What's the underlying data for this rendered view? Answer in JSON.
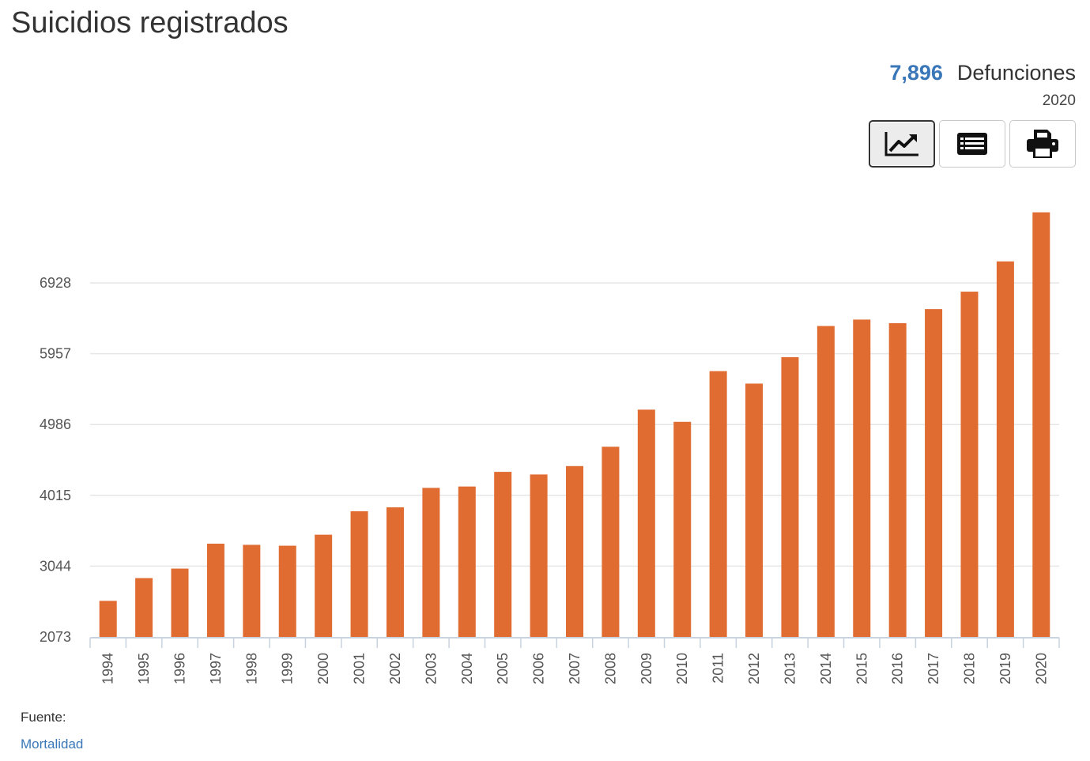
{
  "header": {
    "title": "Suicidios registrados"
  },
  "summary": {
    "value": "7,896",
    "unit": "Defunciones",
    "year": "2020"
  },
  "toolbar": {
    "chart_icon": "chart-line-icon",
    "table_icon": "list-icon",
    "print_icon": "printer-icon"
  },
  "colors": {
    "bar": "#e06c32",
    "accent": "#3a77b8",
    "grid": "#e6e6e6",
    "axis": "#c9d3e0"
  },
  "source": {
    "label": "Fuente:",
    "link": "Mortalidad"
  },
  "chart_data": {
    "type": "bar",
    "title": "",
    "xlabel": "",
    "ylabel": "",
    "categories": [
      "1994",
      "1995",
      "1996",
      "1997",
      "1998",
      "1999",
      "2000",
      "2001",
      "2002",
      "2003",
      "2004",
      "2005",
      "2006",
      "2007",
      "2008",
      "2009",
      "2010",
      "2011",
      "2012",
      "2013",
      "2014",
      "2015",
      "2016",
      "2017",
      "2018",
      "2019",
      "2020"
    ],
    "values": [
      2568,
      2880,
      3010,
      3352,
      3336,
      3324,
      3475,
      3797,
      3850,
      4117,
      4136,
      4337,
      4301,
      4416,
      4681,
      5190,
      5023,
      5718,
      5547,
      5909,
      6337,
      6425,
      6376,
      6569,
      6808,
      7223,
      7896
    ],
    "yticks": [
      "2073",
      "3044",
      "4015",
      "4986",
      "5957",
      "6928"
    ],
    "ylim": [
      2073,
      7896
    ],
    "grid": true,
    "legend": false
  }
}
